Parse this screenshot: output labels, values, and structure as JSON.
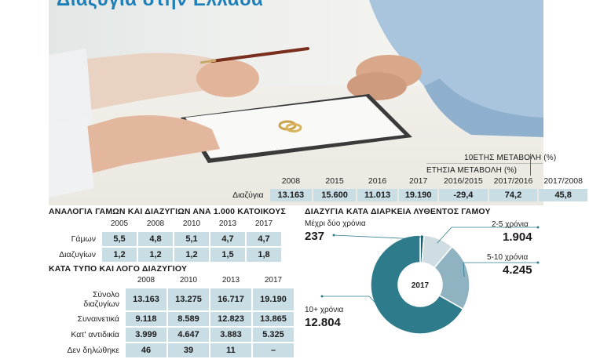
{
  "headline": "Διαζύγια στην Ελλάδα",
  "table_top": {
    "years": [
      "2008",
      "2015",
      "2016",
      "2017"
    ],
    "row_label": "Διαζύγια",
    "values": [
      "13.163",
      "15.600",
      "11.013",
      "19.190"
    ],
    "annual_header": "ΕΤΗΣΙΑ ΜΕΤΑΒΟΛΗ (%)",
    "annual_periods": [
      "2016/2015",
      "2017/2016"
    ],
    "annual_values": [
      "-29,4",
      "74,2"
    ],
    "decade_header": "10ΕΤΗΣ ΜΕΤΑΒΟΛΗ (%)",
    "decade_period": "2017/2008",
    "decade_value": "45,8"
  },
  "ratio": {
    "title": "ΑΝΑΛΟΓΙΑ ΓΑΜΩΝ ΚΑΙ ΔΙΑΖΥΓΙΩΝ ΑΝΑ 1.000 ΚΑΤΟΙΚΟΥΣ",
    "years": [
      "2005",
      "2008",
      "2010",
      "2013",
      "2017"
    ],
    "rows": [
      {
        "label": "Γάμων",
        "values": [
          "5,5",
          "4,8",
          "5,1",
          "4,7",
          "4,7"
        ]
      },
      {
        "label": "Διαζυγίων",
        "values": [
          "1,2",
          "1,2",
          "1,2",
          "1,5",
          "1,8"
        ]
      }
    ]
  },
  "bytype": {
    "title": "ΚΑΤΑ ΤΥΠΟ ΚΑΙ ΛΟΓΟ ΔΙΑΖΥΓΙΟΥ",
    "years": [
      "2008",
      "2010",
      "2013",
      "2017"
    ],
    "rows": [
      {
        "label": "Σύνολο διαζυγίων",
        "values": [
          "13.163",
          "13.275",
          "16.717",
          "19.190"
        ]
      },
      {
        "label": "Συναινετικά",
        "values": [
          "9.118",
          "8.589",
          "12.823",
          "13.865"
        ]
      },
      {
        "label": "Κατ' αντιδικία",
        "values": [
          "3.999",
          "4.647",
          "3.883",
          "5.325"
        ]
      },
      {
        "label": "Δεν δηλώθηκε",
        "values": [
          "46",
          "39",
          "11",
          "–"
        ]
      }
    ]
  },
  "chart_data": {
    "type": "pie",
    "title": "ΔΙΑΖΥΓΙΑ ΚΑΤΑ ΔΙΑΡΚΕΙΑ ΛΥΘΕΝΤΟΣ ΓΑΜΟΥ",
    "center_label": "2017",
    "slices": [
      {
        "label": "Μέχρι δύο χρόνια",
        "value": 237,
        "value_text": "237",
        "color": "#1f5f6d"
      },
      {
        "label": "2-5 χρόνια",
        "value": 1904,
        "value_text": "1.904",
        "color": "#cfdde3"
      },
      {
        "label": "5-10 χρόνια",
        "value": 4245,
        "value_text": "4.245",
        "color": "#8fb3c1"
      },
      {
        "label": "10+ χρόνια",
        "value": 12804,
        "value_text": "12.804",
        "color": "#2e7b8c"
      }
    ]
  },
  "colors": {
    "accent": "#1f7fb8",
    "cell": "#c9dde5",
    "pie_dark": "#2e7b8c"
  }
}
